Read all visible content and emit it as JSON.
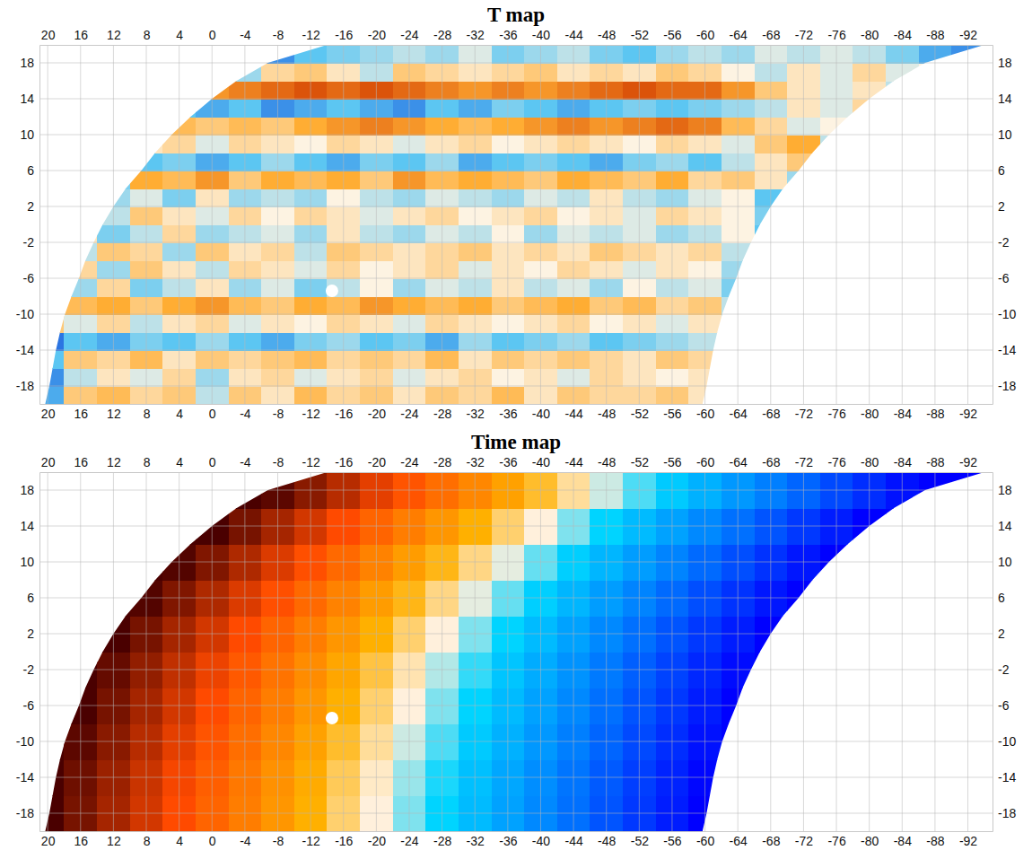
{
  "chart_data": [
    {
      "type": "heatmap",
      "title": "T map",
      "x": [
        20,
        16,
        12,
        8,
        4,
        0,
        -4,
        -8,
        -12,
        -16,
        -20,
        -24,
        -28,
        -32,
        -36,
        -40,
        -44,
        -48,
        -52,
        -56,
        -60,
        -64,
        -68,
        -72,
        -76,
        -80,
        -84,
        -88,
        -92
      ],
      "y": [
        -19,
        -17,
        -15,
        -13,
        -11,
        -9,
        -7,
        -5,
        -3,
        -1,
        1,
        3,
        5,
        7,
        9,
        11,
        13,
        15,
        17,
        19
      ],
      "cells": [
        [
          -0.6,
          0.3,
          0.4,
          0.2,
          0.3,
          -0.2,
          0.3,
          0.1,
          0.4,
          0.2,
          0.3,
          0.1,
          0.3,
          0.2,
          0.4,
          0.1,
          0.3,
          0.2,
          0.2,
          0.3,
          0.1,
          null,
          null,
          null,
          null,
          null,
          null,
          null,
          null
        ],
        [
          -0.7,
          -0.2,
          0.1,
          -0.1,
          0.2,
          -0.3,
          0.1,
          0.2,
          -0.1,
          0.1,
          0.2,
          -0.1,
          0.1,
          0.2,
          0,
          0.1,
          -0.1,
          0.2,
          0.1,
          0,
          0.1,
          null,
          null,
          null,
          null,
          null,
          null,
          null,
          null
        ],
        [
          -0.5,
          0.3,
          0.2,
          0.4,
          0.1,
          0.3,
          0.2,
          0.3,
          0.4,
          0.2,
          0.3,
          0.2,
          0.4,
          0.1,
          0.3,
          0.2,
          0.3,
          0.2,
          0.1,
          0.3,
          0.2,
          null,
          null,
          null,
          null,
          null,
          null,
          null,
          null
        ],
        [
          -0.8,
          -0.5,
          -0.6,
          -0.4,
          -0.5,
          -0.3,
          -0.5,
          -0.6,
          -0.4,
          -0.3,
          -0.5,
          -0.4,
          -0.6,
          -0.3,
          -0.5,
          -0.4,
          -0.3,
          -0.5,
          -0.4,
          -0.3,
          -0.2,
          null,
          null,
          null,
          null,
          null,
          null,
          null,
          null
        ],
        [
          0.3,
          -0.1,
          0.2,
          -0.2,
          0.1,
          0.2,
          -0.1,
          0.1,
          0,
          0.2,
          0.1,
          -0.1,
          0.2,
          0.1,
          0,
          0.1,
          0.2,
          0,
          0.1,
          -0.1,
          0.1,
          -0.3,
          null,
          null,
          null,
          null,
          null,
          null,
          null
        ],
        [
          null,
          0.4,
          0.5,
          0.3,
          0.5,
          0.6,
          0.4,
          0.3,
          0.5,
          0.4,
          0.6,
          0.5,
          0.4,
          0.5,
          0.3,
          0.4,
          0.5,
          0.3,
          0.4,
          0.2,
          0.3,
          -0.2,
          null,
          null,
          null,
          null,
          null,
          null,
          null
        ],
        [
          null,
          -0.3,
          0.2,
          -0.4,
          -0.2,
          0.1,
          -0.3,
          -0.1,
          -0.4,
          -0.2,
          0,
          -0.3,
          -0.1,
          -0.2,
          0.1,
          -0.2,
          -0.1,
          -0.3,
          0,
          -0.2,
          -0.1,
          -0.4,
          null,
          null,
          null,
          null,
          null,
          null,
          null
        ],
        [
          null,
          0.2,
          -0.3,
          0.3,
          0.1,
          -0.2,
          0.2,
          0.1,
          -0.1,
          0.2,
          0,
          0.1,
          0.2,
          -0.1,
          0.1,
          0,
          0.2,
          0.1,
          -0.1,
          0.1,
          0,
          -0.3,
          null,
          null,
          null,
          null,
          null,
          null,
          null
        ],
        [
          null,
          -0.2,
          0.3,
          0.2,
          -0.3,
          0.3,
          0.1,
          0.2,
          -0.2,
          0.3,
          0.2,
          0.1,
          0.2,
          0.3,
          0.1,
          0.2,
          0.1,
          0.3,
          0.2,
          0.1,
          0.2,
          -0.2,
          null,
          null,
          null,
          null,
          null,
          null,
          null
        ],
        [
          null,
          0.1,
          -0.4,
          -0.2,
          0.2,
          -0.3,
          -0.2,
          -0.1,
          -0.3,
          0.1,
          -0.2,
          -0.3,
          -0.1,
          -0.2,
          0,
          -0.3,
          -0.1,
          -0.2,
          -0.1,
          -0.3,
          -0.2,
          0,
          -0.5,
          null,
          null,
          null,
          null,
          null,
          null
        ],
        [
          null,
          null,
          -0.2,
          0.3,
          0.1,
          -0.1,
          0.2,
          0,
          0.2,
          0.1,
          -0.1,
          0.1,
          0.2,
          0,
          0.1,
          0.2,
          0,
          0.1,
          -0.1,
          0.2,
          0.1,
          0,
          -0.4,
          null,
          null,
          null,
          null,
          null,
          null
        ],
        [
          null,
          null,
          -0.3,
          -0.1,
          -0.4,
          0.1,
          -0.3,
          -0.2,
          -0.3,
          0,
          -0.2,
          -0.3,
          -0.1,
          -0.2,
          -0.3,
          -0.1,
          -0.2,
          0.1,
          -0.2,
          -0.3,
          -0.1,
          0,
          -0.5,
          null,
          null,
          null,
          null,
          null,
          null
        ],
        [
          null,
          null,
          -0.4,
          0.5,
          0.4,
          0.6,
          0.3,
          0.5,
          0.4,
          0.5,
          0.3,
          0.6,
          0.4,
          0.5,
          0.4,
          0.3,
          0.5,
          0.4,
          0.3,
          0.5,
          0.2,
          0.3,
          0.1,
          -0.3,
          null,
          null,
          null,
          null,
          null
        ],
        [
          null,
          null,
          null,
          -0.5,
          -0.4,
          -0.6,
          -0.5,
          -0.3,
          -0.5,
          -0.6,
          -0.4,
          -0.5,
          -0.3,
          -0.6,
          -0.5,
          -0.4,
          -0.5,
          -0.6,
          -0.4,
          -0.3,
          -0.5,
          -0.2,
          0.1,
          0.3,
          null,
          null,
          null,
          null,
          null
        ],
        [
          null,
          null,
          null,
          0.1,
          0.2,
          -0.1,
          0.2,
          0.1,
          0,
          0.2,
          0.1,
          -0.1,
          0.1,
          0.2,
          0,
          0.1,
          0.2,
          0.1,
          0,
          0.2,
          0.1,
          -0.1,
          0.3,
          0.5,
          -0.2,
          null,
          null,
          null,
          null
        ],
        [
          null,
          null,
          null,
          null,
          0.4,
          0.3,
          0.4,
          0.3,
          0.5,
          0.6,
          0.7,
          0.6,
          0.5,
          0.4,
          0.5,
          0.6,
          0.7,
          0.6,
          0.7,
          0.8,
          0.7,
          0.4,
          0.2,
          -0.1,
          0,
          null,
          null,
          null,
          null
        ],
        [
          null,
          null,
          null,
          null,
          -0.5,
          -0.6,
          -0.5,
          -0.7,
          -0.6,
          -0.5,
          -0.6,
          -0.7,
          -0.5,
          -0.6,
          -0.4,
          -0.5,
          -0.6,
          -0.5,
          -0.4,
          -0.5,
          -0.4,
          -0.3,
          -0.2,
          0.1,
          -0.1,
          0.2,
          null,
          null,
          null
        ],
        [
          null,
          null,
          null,
          null,
          null,
          0.6,
          0.7,
          0.8,
          0.9,
          0.8,
          0.9,
          0.8,
          0.7,
          0.6,
          0.7,
          0.6,
          0.7,
          0.8,
          0.9,
          0.8,
          0.8,
          0.6,
          0.3,
          0.1,
          -0.1,
          0.1,
          -0.2,
          null,
          null
        ],
        [
          null,
          null,
          null,
          null,
          null,
          null,
          -0.3,
          0.2,
          0.3,
          0.1,
          -0.2,
          0.3,
          0.2,
          0.1,
          0.2,
          0.3,
          0.1,
          0.2,
          0.1,
          0.3,
          0.2,
          0,
          -0.2,
          0.1,
          -0.1,
          0.2,
          -0.1,
          0,
          null
        ],
        [
          null,
          null,
          null,
          null,
          null,
          null,
          null,
          -0.7,
          -0.5,
          -0.4,
          -0.3,
          -0.2,
          -0.3,
          -0.1,
          -0.4,
          -0.3,
          -0.2,
          -0.4,
          -0.5,
          -0.3,
          -0.2,
          -0.3,
          -0.1,
          -0.2,
          -0.1,
          -0.2,
          -0.4,
          -0.6,
          -0.7
        ]
      ],
      "color_range": [
        -1,
        1
      ],
      "footprint": {
        "x": [
          20.3,
          19.8,
          19.4,
          19,
          18.5,
          17.9,
          17.1,
          16.2,
          15.4,
          14.4,
          13.3,
          12,
          10.5,
          8.6,
          6.9,
          4.9,
          2.6,
          0,
          -3,
          -6.8,
          -14,
          -94,
          -86.8,
          -83,
          -80,
          -77.4,
          -75.1,
          -73.1,
          -71.4,
          -69.5,
          -68,
          -66.7,
          -65.6,
          -64.6,
          -63.8,
          -62.9,
          -62.1,
          -61.5,
          -61,
          -60.6,
          -60.2,
          -59.7
        ],
        "y": [
          -20,
          -18,
          -16,
          -14,
          -12,
          -10,
          -8,
          -6,
          -4,
          -2,
          0,
          2,
          4,
          6,
          8,
          10,
          12,
          14,
          16,
          18,
          20,
          20,
          18,
          16,
          14,
          12,
          10,
          8,
          6,
          4,
          2,
          0,
          -2,
          -4,
          -6,
          -8,
          -10,
          -12,
          -14,
          -16,
          -18,
          -20
        ]
      },
      "masked_point": {
        "x": -14.6,
        "y": -7.4
      },
      "xlim": [
        21,
        -95
      ],
      "ylim": [
        -20,
        20
      ],
      "xticks": [
        20,
        16,
        12,
        8,
        4,
        0,
        -4,
        -8,
        -12,
        -16,
        -20,
        -24,
        -28,
        -32,
        -36,
        -40,
        -44,
        -48,
        -52,
        -56,
        -60,
        -64,
        -68,
        -72,
        -76,
        -80,
        -84,
        -88,
        -92
      ],
      "yticks": [
        -18,
        -14,
        -10,
        -6,
        -2,
        2,
        6,
        10,
        14,
        18
      ],
      "grid": true
    },
    {
      "type": "heatmap",
      "title": "Time map",
      "x": [
        20,
        16,
        12,
        8,
        4,
        0,
        -4,
        -8,
        -12,
        -16,
        -20,
        -24,
        -28,
        -32,
        -36,
        -40,
        -44,
        -48,
        -52,
        -56,
        -60,
        -64,
        -68,
        -72,
        -76,
        -80,
        -84,
        -88,
        -92
      ],
      "y": [
        -18,
        -14,
        -10,
        -6,
        -2,
        2,
        6,
        10,
        14,
        18
      ],
      "cells": [
        [
          0,
          0.05,
          0.1,
          0.15,
          0.2,
          0.25,
          0.3,
          0.35,
          0.4,
          0.45,
          0.5,
          0.55,
          0.6,
          0.65,
          0.7,
          0.75,
          0.8,
          0.85,
          0.9,
          0.95,
          1,
          null,
          null,
          null,
          null,
          null,
          null,
          null,
          null
        ],
        [
          0,
          0.04,
          0.09,
          0.14,
          0.19,
          0.24,
          0.29,
          0.34,
          0.39,
          0.44,
          0.49,
          0.54,
          0.59,
          0.64,
          0.69,
          0.74,
          0.79,
          0.84,
          0.89,
          0.94,
          0.99,
          null,
          null,
          null,
          null,
          null,
          null,
          null,
          null
        ],
        [
          0,
          0.02,
          0.07,
          0.12,
          0.17,
          0.22,
          0.27,
          0.32,
          0.37,
          0.42,
          0.47,
          0.52,
          0.57,
          0.62,
          0.67,
          0.72,
          0.77,
          0.82,
          0.87,
          0.92,
          0.97,
          1,
          null,
          null,
          null,
          null,
          null,
          null,
          null
        ],
        [
          null,
          0,
          0.05,
          0.1,
          0.15,
          0.2,
          0.25,
          0.3,
          0.35,
          0.4,
          0.45,
          0.5,
          0.55,
          0.6,
          0.65,
          0.7,
          0.75,
          0.8,
          0.85,
          0.9,
          0.95,
          1,
          null,
          null,
          null,
          null,
          null,
          null,
          null
        ],
        [
          null,
          0,
          0.03,
          0.08,
          0.13,
          0.18,
          0.23,
          0.28,
          0.33,
          0.38,
          0.43,
          0.48,
          0.53,
          0.58,
          0.63,
          0.68,
          0.73,
          0.78,
          0.83,
          0.88,
          0.93,
          0.98,
          1,
          null,
          null,
          null,
          null,
          null,
          null
        ],
        [
          null,
          null,
          0,
          0.05,
          0.1,
          0.15,
          0.2,
          0.25,
          0.3,
          0.35,
          0.4,
          0.45,
          0.5,
          0.55,
          0.6,
          0.65,
          0.7,
          0.75,
          0.8,
          0.85,
          0.9,
          0.95,
          1,
          null,
          null,
          null,
          null,
          null,
          null
        ],
        [
          null,
          null,
          0,
          0.01,
          0.06,
          0.11,
          0.16,
          0.21,
          0.26,
          0.31,
          0.36,
          0.41,
          0.46,
          0.51,
          0.56,
          0.61,
          0.66,
          0.71,
          0.76,
          0.81,
          0.86,
          0.91,
          0.96,
          1,
          null,
          null,
          null,
          null,
          null
        ],
        [
          null,
          null,
          null,
          0,
          0.01,
          0.06,
          0.11,
          0.16,
          0.21,
          0.26,
          0.31,
          0.36,
          0.41,
          0.46,
          0.51,
          0.56,
          0.61,
          0.66,
          0.71,
          0.76,
          0.81,
          0.86,
          0.91,
          0.96,
          1,
          null,
          null,
          null,
          null
        ],
        [
          null,
          null,
          null,
          null,
          0,
          0,
          0.05,
          0.1,
          0.15,
          0.2,
          0.25,
          0.3,
          0.35,
          0.4,
          0.45,
          0.5,
          0.55,
          0.6,
          0.65,
          0.7,
          0.75,
          0.8,
          0.85,
          0.9,
          0.95,
          1,
          1,
          null,
          null
        ],
        [
          null,
          null,
          null,
          null,
          null,
          null,
          0,
          0.02,
          0.07,
          0.12,
          0.17,
          0.22,
          0.27,
          0.32,
          0.37,
          0.42,
          0.47,
          0.52,
          0.57,
          0.62,
          0.67,
          0.72,
          0.77,
          0.82,
          0.87,
          0.92,
          0.97,
          1,
          1
        ]
      ],
      "color_range": [
        0,
        1
      ],
      "footprint": {
        "x": [
          20.3,
          19.8,
          19.4,
          19,
          18.5,
          17.9,
          17.1,
          16.2,
          15.4,
          14.4,
          13.3,
          12,
          10.5,
          8.6,
          6.9,
          4.9,
          2.6,
          0,
          -3,
          -6.8,
          -14,
          -94,
          -86.8,
          -83,
          -80,
          -77.4,
          -75.1,
          -73.1,
          -71.4,
          -69.5,
          -68,
          -66.7,
          -65.6,
          -64.6,
          -63.8,
          -62.9,
          -62.1,
          -61.5,
          -61,
          -60.6,
          -60.2,
          -59.7
        ],
        "y": [
          -20,
          -18,
          -16,
          -14,
          -12,
          -10,
          -8,
          -6,
          -4,
          -2,
          0,
          2,
          4,
          6,
          8,
          10,
          12,
          14,
          16,
          18,
          20,
          20,
          18,
          16,
          14,
          12,
          10,
          8,
          6,
          4,
          2,
          0,
          -2,
          -4,
          -6,
          -8,
          -10,
          -12,
          -14,
          -16,
          -18,
          -20
        ]
      },
      "masked_point": {
        "x": -14.6,
        "y": -7.4
      },
      "xlim": [
        21,
        -95
      ],
      "ylim": [
        -20,
        20
      ],
      "xticks": [
        20,
        16,
        12,
        8,
        4,
        0,
        -4,
        -8,
        -12,
        -16,
        -20,
        -24,
        -28,
        -32,
        -36,
        -40,
        -44,
        -48,
        -52,
        -56,
        -60,
        -64,
        -68,
        -72,
        -76,
        -80,
        -84,
        -88,
        -92
      ],
      "yticks": [
        -18,
        -14,
        -10,
        -6,
        -2,
        2,
        6,
        10,
        14,
        18
      ],
      "grid": true
    }
  ]
}
